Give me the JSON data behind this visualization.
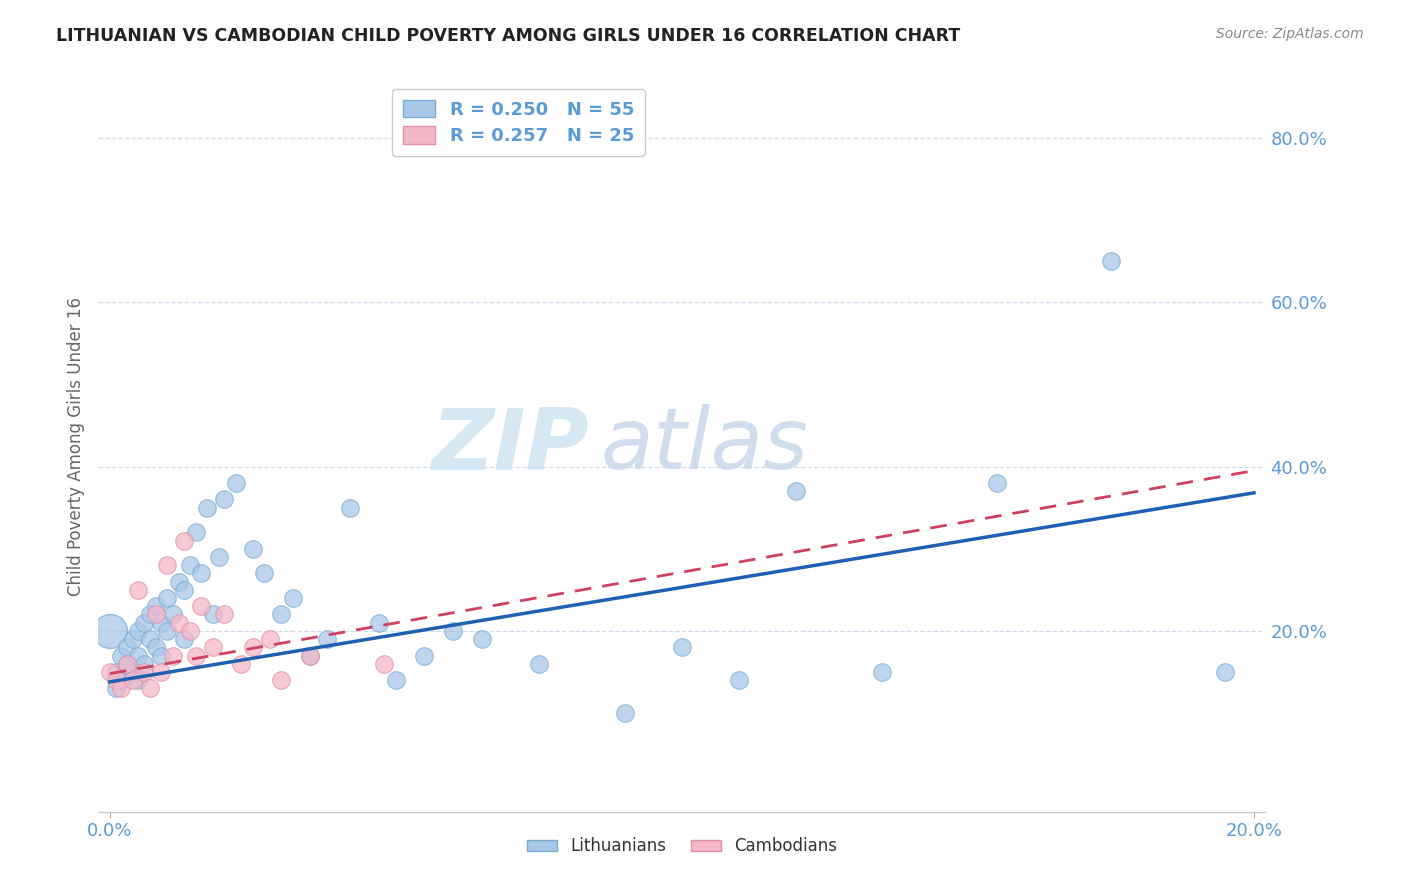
{
  "title": "LITHUANIAN VS CAMBODIAN CHILD POVERTY AMONG GIRLS UNDER 16 CORRELATION CHART",
  "source": "Source: ZipAtlas.com",
  "ylabel": "Child Poverty Among Girls Under 16",
  "xlim": [
    -0.002,
    0.202
  ],
  "ylim": [
    -0.02,
    0.87
  ],
  "x_ticks": [
    0.0,
    0.2
  ],
  "x_tick_labels": [
    "0.0%",
    "20.0%"
  ],
  "y_tick_labels": [
    "20.0%",
    "40.0%",
    "60.0%",
    "80.0%"
  ],
  "y_ticks": [
    0.2,
    0.4,
    0.6,
    0.8
  ],
  "legend_r_blue": "R = 0.250",
  "legend_n_blue": "N = 55",
  "legend_r_pink": "R = 0.257",
  "legend_n_pink": "N = 25",
  "scatter_blue_x": [
    0.0,
    0.001,
    0.001,
    0.002,
    0.002,
    0.003,
    0.003,
    0.004,
    0.004,
    0.005,
    0.005,
    0.005,
    0.006,
    0.006,
    0.007,
    0.007,
    0.008,
    0.008,
    0.009,
    0.009,
    0.01,
    0.01,
    0.011,
    0.012,
    0.013,
    0.013,
    0.014,
    0.015,
    0.016,
    0.017,
    0.018,
    0.019,
    0.02,
    0.022,
    0.025,
    0.027,
    0.03,
    0.032,
    0.035,
    0.038,
    0.042,
    0.047,
    0.05,
    0.055,
    0.06,
    0.065,
    0.075,
    0.09,
    0.1,
    0.11,
    0.12,
    0.135,
    0.155,
    0.175,
    0.195
  ],
  "scatter_blue_y": [
    0.2,
    0.15,
    0.13,
    0.17,
    0.14,
    0.16,
    0.18,
    0.15,
    0.19,
    0.17,
    0.2,
    0.14,
    0.21,
    0.16,
    0.19,
    0.22,
    0.18,
    0.23,
    0.17,
    0.21,
    0.2,
    0.24,
    0.22,
    0.26,
    0.25,
    0.19,
    0.28,
    0.32,
    0.27,
    0.35,
    0.22,
    0.29,
    0.36,
    0.38,
    0.3,
    0.27,
    0.22,
    0.24,
    0.17,
    0.19,
    0.35,
    0.21,
    0.14,
    0.17,
    0.2,
    0.19,
    0.16,
    0.1,
    0.18,
    0.14,
    0.37,
    0.15,
    0.38,
    0.65,
    0.15
  ],
  "scatter_pink_x": [
    0.0,
    0.001,
    0.002,
    0.003,
    0.004,
    0.005,
    0.006,
    0.007,
    0.008,
    0.009,
    0.01,
    0.011,
    0.012,
    0.013,
    0.014,
    0.015,
    0.016,
    0.018,
    0.02,
    0.023,
    0.025,
    0.028,
    0.03,
    0.035,
    0.048
  ],
  "scatter_pink_y": [
    0.15,
    0.14,
    0.13,
    0.16,
    0.14,
    0.25,
    0.15,
    0.13,
    0.22,
    0.15,
    0.28,
    0.17,
    0.21,
    0.31,
    0.2,
    0.17,
    0.23,
    0.18,
    0.22,
    0.16,
    0.18,
    0.19,
    0.14,
    0.17,
    0.16
  ],
  "blue_line_x": [
    0.0,
    0.2
  ],
  "blue_line_y": [
    0.138,
    0.368
  ],
  "pink_line_x": [
    0.0,
    0.2
  ],
  "pink_line_y": [
    0.148,
    0.395
  ],
  "blue_color": "#A8C8E8",
  "blue_edge_color": "#7AAAD0",
  "pink_color": "#F4B8C8",
  "pink_edge_color": "#E090A8",
  "blue_line_color": "#2060B0",
  "pink_line_color": "#D04060",
  "watermark_zip": "ZIP",
  "watermark_atlas": "atlas",
  "bg_color": "#FFFFFF",
  "grid_color": "#CCDDEE",
  "tick_color": "#5B9BD5",
  "title_color": "#222222",
  "source_color": "#888888"
}
